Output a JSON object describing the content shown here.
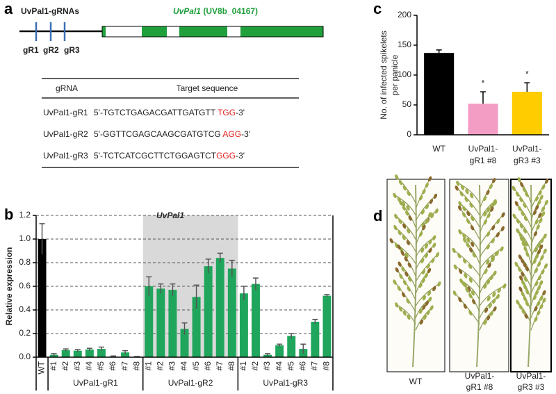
{
  "panel_labels": [
    "a",
    "b",
    "c",
    "d"
  ],
  "gene_diagram": {
    "guide_label": "UvPal1-gRNAs",
    "gene_name": "UvPal1",
    "gene_id": "(UV8b_04167)",
    "guides": [
      "gR1",
      "gR2",
      "gR3"
    ]
  },
  "table": {
    "header": [
      "gRNA",
      "Target sequence"
    ],
    "rows": [
      {
        "name": "UvPal1-gR1",
        "sequence": "5'-TGTCTGAGACGATTGATGTT ",
        "pam": "TGG",
        "end": "-3'"
      },
      {
        "name": "UvPal1-gR2",
        "sequence": "5'-GGTTCGAGCAAGCGATGTCG ",
        "pam": "AGG",
        "end": "-3'"
      },
      {
        "name": "UvPal1-gR3",
        "sequence": "5'-TCTCATCGCTTCTGGAGTCT",
        "pam": "GGG",
        "end": "-3'"
      }
    ]
  },
  "chart_data": [
    {
      "type": "bar",
      "title": "UvPal1",
      "y_label": "Relative expression",
      "categories": [
        "WT",
        "#1",
        "#2",
        "#3",
        "#4",
        "#5",
        "#6",
        "#7",
        "#8",
        "#1",
        "#2",
        "#3",
        "#4",
        "#5",
        "#6",
        "#7",
        "#8",
        "#1",
        "#2",
        "#3",
        "#4",
        "#5",
        "#6",
        "#7",
        "#8"
      ],
      "values": [
        1.0,
        0.02,
        0.06,
        0.055,
        0.065,
        0.07,
        0.005,
        0.04,
        0.003,
        0.6,
        0.58,
        0.57,
        0.24,
        0.51,
        0.77,
        0.84,
        0.75,
        0.54,
        0.62,
        0.02,
        0.1,
        0.18,
        0.07,
        0.3,
        0.52
      ],
      "errors": [
        0.13,
        0.01,
        0.01,
        0.01,
        0.01,
        0.015,
        0.005,
        0.015,
        0.003,
        0.08,
        0.04,
        0.05,
        0.05,
        0.1,
        0.06,
        0.04,
        0.07,
        0.06,
        0.05,
        0.01,
        0.01,
        0.02,
        0.04,
        0.02,
        0.01
      ],
      "colors": [
        "#000000",
        "#1fa65c",
        "#1fa65c",
        "#1fa65c",
        "#1fa65c",
        "#1fa65c",
        "#1fa65c",
        "#1fa65c",
        "#1fa65c",
        "#1fa65c",
        "#1fa65c",
        "#1fa65c",
        "#1fa65c",
        "#1fa65c",
        "#1fa65c",
        "#1fa65c",
        "#1fa65c",
        "#1fa65c",
        "#1fa65c",
        "#1fa65c",
        "#1fa65c",
        "#1fa65c",
        "#1fa65c",
        "#1fa65c",
        "#1fa65c"
      ],
      "groups": [
        {
          "label": "UvPal1-gR1",
          "size": 8
        },
        {
          "label": "UvPal1-gR2",
          "size": 8
        },
        {
          "label": "UvPal1-gR3",
          "size": 8
        }
      ],
      "shaded_group": 1,
      "ylim": [
        0,
        1.2
      ],
      "yticks": [
        {
          "value": 0,
          "label": "0.0"
        },
        0.2,
        0.4,
        0.6,
        0.8,
        {
          "value": 1,
          "label": "1.0"
        },
        1.2
      ],
      "grid": true
    },
    {
      "type": "bar",
      "y_label": [
        "No. of infected spikelets",
        "per panicle"
      ],
      "categories": [
        [
          "WT"
        ],
        [
          "UvPal1-",
          "gR1 #8"
        ],
        [
          "UvPal1-",
          "gR3 #3"
        ]
      ],
      "values": [
        137,
        52,
        72
      ],
      "errors": [
        5,
        20,
        15
      ],
      "colors": [
        "#000000",
        "#f39cc4",
        "#ffcc00"
      ],
      "annotations": [
        null,
        "*",
        "*"
      ],
      "ylim": [
        0,
        200
      ],
      "yticks": [
        0,
        50,
        100,
        150,
        200
      ],
      "grid": false
    }
  ],
  "images": {
    "labels": [
      [
        "WT"
      ],
      [
        "UvPal1-",
        "gR1 #8"
      ],
      [
        "UvPal1-",
        "gR3 #3"
      ]
    ]
  }
}
